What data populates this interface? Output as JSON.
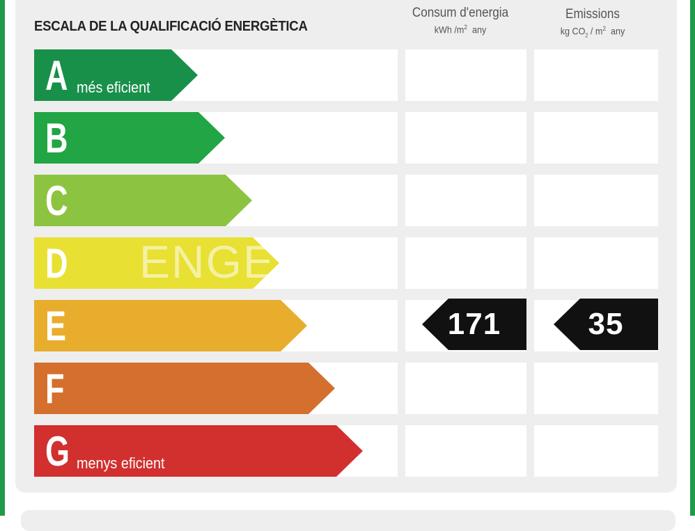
{
  "title": "ESCALA DE LA QUALIFICACIÓ ENERGÈTICA",
  "columns": {
    "consumption": {
      "heading": "Consum d'energia",
      "unit_prefix": "kWh /m",
      "unit_sup": "2",
      "unit_suffix": "any"
    },
    "emissions": {
      "heading": "Emissions",
      "unit_prefix": "kg CO",
      "unit_sub": "2",
      "unit_mid": "/ m",
      "unit_sup": "2",
      "unit_suffix": "any"
    }
  },
  "ratings": [
    {
      "letter": "A",
      "label": "més eficient",
      "color": "#18904a"
    },
    {
      "letter": "B",
      "label": "",
      "color": "#22a545"
    },
    {
      "letter": "C",
      "label": "",
      "color": "#8cc441"
    },
    {
      "letter": "D",
      "label": "",
      "color": "#e8e032"
    },
    {
      "letter": "E",
      "label": "",
      "color": "#e8ad2c"
    },
    {
      "letter": "F",
      "label": "",
      "color": "#d46f2e"
    },
    {
      "letter": "G",
      "label": "menys eficient",
      "color": "#d22f2f"
    }
  ],
  "current": {
    "rating": "E",
    "consumption_value": "171",
    "emissions_value": "35"
  },
  "watermark": "ENGE"
}
